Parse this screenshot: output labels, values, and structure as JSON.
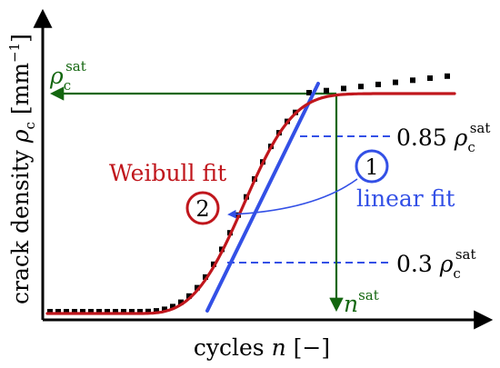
{
  "colors": {
    "axis": "#000000",
    "weibull": "#c0161c",
    "linear": "#3350e6",
    "guide_green": "#13660f",
    "guide_blue": "#3350e6",
    "data_points": "#000000"
  },
  "axes": {
    "x_label_text": "cycles ",
    "x_label_var": "n",
    "x_label_unit": " [−]",
    "y_label_text": "crack density ",
    "y_label_var": "ρ",
    "y_label_sub": "c",
    "y_label_unit_open": " [mm",
    "y_label_unit_exp": "−1",
    "y_label_unit_close": "]"
  },
  "annotations": {
    "rho_sat_symbol": "ρ",
    "rho_sat_sub": "c",
    "rho_sat_sup": "sat",
    "n_sat_symbol": "n",
    "n_sat_sup": "sat",
    "level_085_prefix": "0.85 ",
    "level_03_prefix": "0.3 ",
    "weibull_label": "Weibull fit",
    "linear_label": "linear fit",
    "marker_linear": "1",
    "marker_weibull": "2"
  }
}
